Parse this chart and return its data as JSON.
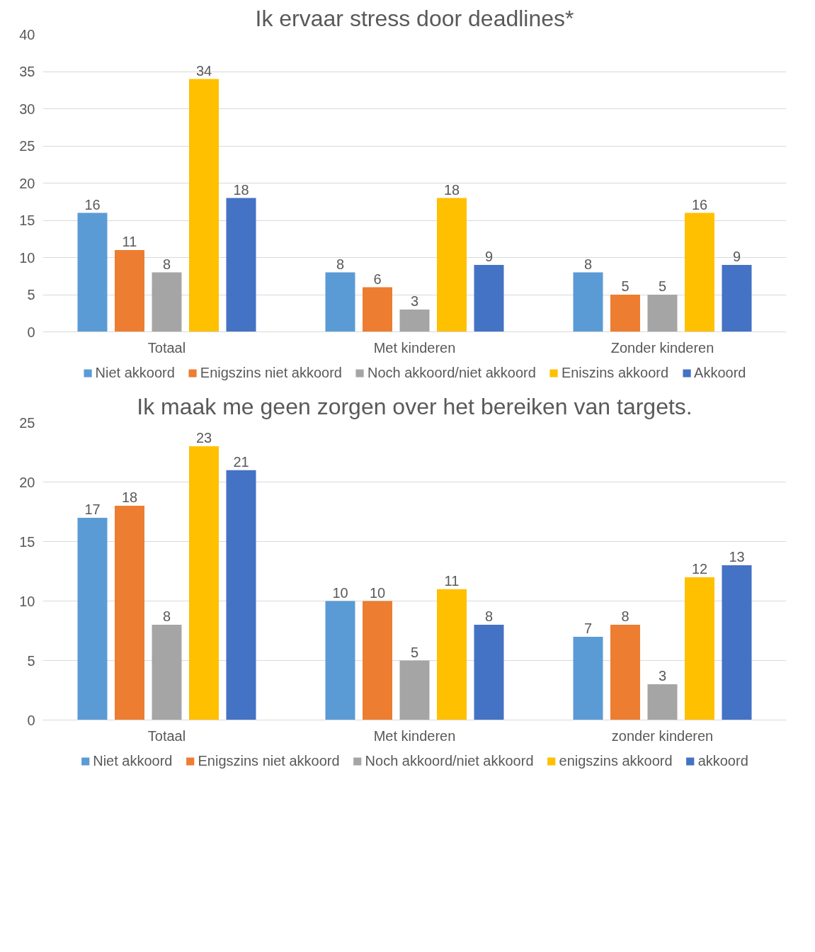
{
  "chart_data": [
    {
      "type": "bar",
      "title": "Ik ervaar stress door deadlines*",
      "categories": [
        "Totaal",
        "Met kinderen",
        "Zonder kinderen"
      ],
      "ylim": [
        0,
        40
      ],
      "yticks": [
        0,
        5,
        10,
        15,
        20,
        25,
        30,
        35,
        40
      ],
      "grid": "y",
      "legend": "bottom",
      "data_labels": true,
      "series": [
        {
          "name": "Niet akkoord",
          "color": "#5b9bd5",
          "values": [
            16,
            8,
            8
          ]
        },
        {
          "name": "Enigszins niet akkoord",
          "color": "#ed7d31",
          "values": [
            11,
            6,
            5
          ]
        },
        {
          "name": "Noch akkoord/niet akkoord",
          "color": "#a5a5a5",
          "values": [
            8,
            3,
            5
          ]
        },
        {
          "name": "Eniszins akkoord",
          "color": "#ffc000",
          "values": [
            34,
            18,
            16
          ]
        },
        {
          "name": "Akkoord",
          "color": "#4472c4",
          "values": [
            18,
            9,
            9
          ]
        }
      ]
    },
    {
      "type": "bar",
      "title": "Ik maak me geen zorgen over het bereiken van targets.",
      "categories": [
        "Totaal",
        "Met kinderen",
        "zonder kinderen"
      ],
      "ylim": [
        0,
        25
      ],
      "yticks": [
        0,
        5,
        10,
        15,
        20,
        25
      ],
      "grid": "y",
      "legend": "bottom",
      "data_labels": true,
      "series": [
        {
          "name": "Niet akkoord",
          "color": "#5b9bd5",
          "values": [
            17,
            10,
            7
          ]
        },
        {
          "name": "Enigszins niet akkoord",
          "color": "#ed7d31",
          "values": [
            18,
            10,
            8
          ]
        },
        {
          "name": "Noch akkoord/niet akkoord",
          "color": "#a5a5a5",
          "values": [
            8,
            5,
            3
          ]
        },
        {
          "name": "enigszins akkoord",
          "color": "#ffc000",
          "values": [
            23,
            11,
            12
          ]
        },
        {
          "name": "akkoord",
          "color": "#4472c4",
          "values": [
            21,
            8,
            13
          ]
        }
      ]
    }
  ]
}
